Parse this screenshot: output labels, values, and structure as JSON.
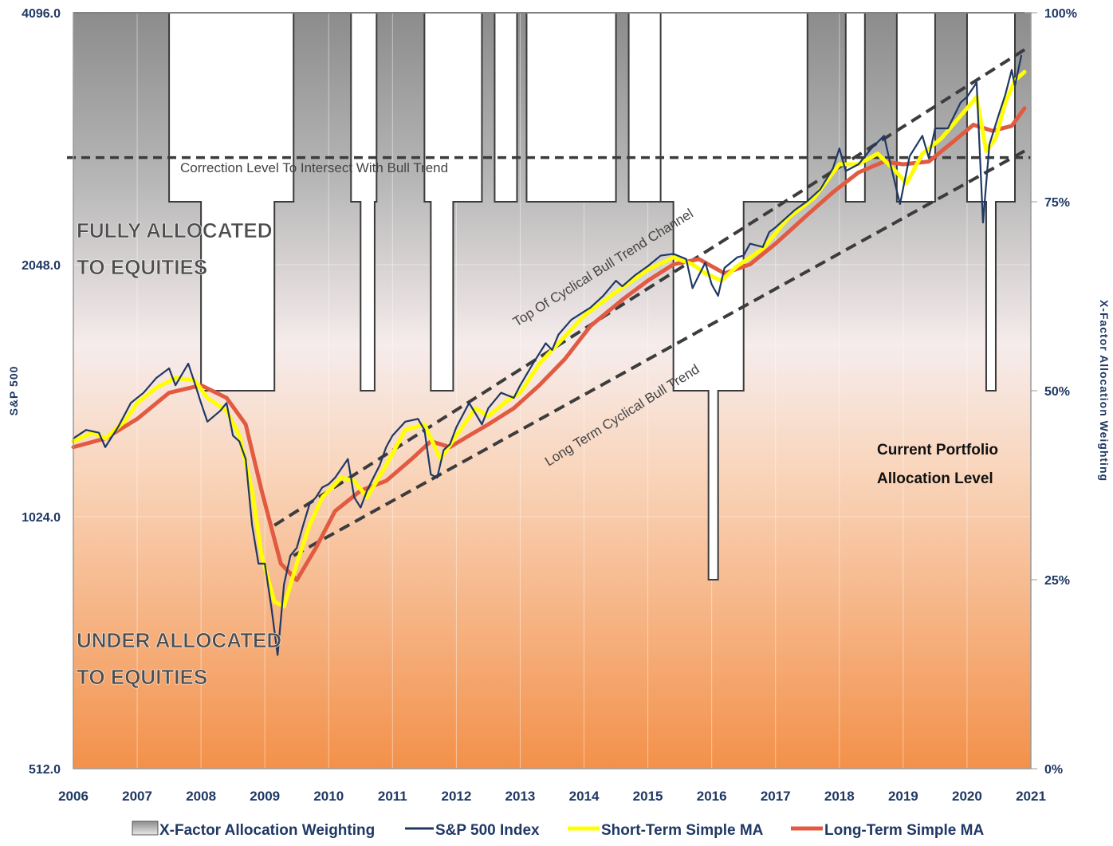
{
  "chart_data": {
    "type": "line",
    "x": [
      2006,
      2007,
      2008,
      2009,
      2010,
      2011,
      2012,
      2013,
      2014,
      2015,
      2016,
      2017,
      2018,
      2019,
      2020,
      2021
    ],
    "xlim": [
      2006,
      2021
    ],
    "left_axis": {
      "label": "S&P 500",
      "scale": "log",
      "ylim": [
        512,
        4096
      ],
      "ticks": [
        "512.0",
        "1024.0",
        "2048.0",
        "4096.0"
      ]
    },
    "right_axis": {
      "label": "X-Factor Allocation Weighting",
      "ylim": [
        0,
        100
      ],
      "ticks": [
        "0%",
        "25%",
        "50%",
        "75%",
        "100%"
      ]
    },
    "series": [
      {
        "name": "X-Factor Allocation Weighting",
        "kind": "step-area",
        "color": "#808080",
        "points": [
          [
            2006.0,
            100
          ],
          [
            2007.5,
            100
          ],
          [
            2007.5,
            75
          ],
          [
            2008.0,
            75
          ],
          [
            2008.0,
            50
          ],
          [
            2009.15,
            50
          ],
          [
            2009.15,
            75
          ],
          [
            2009.45,
            75
          ],
          [
            2009.45,
            100
          ],
          [
            2010.35,
            100
          ],
          [
            2010.35,
            75
          ],
          [
            2010.5,
            75
          ],
          [
            2010.5,
            50
          ],
          [
            2010.72,
            50
          ],
          [
            2010.72,
            75
          ],
          [
            2010.75,
            75
          ],
          [
            2010.75,
            100
          ],
          [
            2011.5,
            100
          ],
          [
            2011.5,
            75
          ],
          [
            2011.6,
            75
          ],
          [
            2011.6,
            50
          ],
          [
            2011.95,
            50
          ],
          [
            2011.95,
            75
          ],
          [
            2012.4,
            75
          ],
          [
            2012.4,
            100
          ],
          [
            2012.6,
            100
          ],
          [
            2012.6,
            75
          ],
          [
            2012.95,
            75
          ],
          [
            2012.95,
            100
          ],
          [
            2013.1,
            100
          ],
          [
            2013.1,
            75
          ],
          [
            2014.5,
            75
          ],
          [
            2014.5,
            100
          ],
          [
            2014.7,
            100
          ],
          [
            2014.7,
            75
          ],
          [
            2015.2,
            75
          ],
          [
            2015.2,
            100
          ],
          [
            2015.2,
            75
          ],
          [
            2015.4,
            75
          ],
          [
            2015.4,
            50
          ],
          [
            2015.95,
            50
          ],
          [
            2015.95,
            25
          ],
          [
            2016.1,
            25
          ],
          [
            2016.1,
            50
          ],
          [
            2016.5,
            50
          ],
          [
            2016.5,
            75
          ],
          [
            2017.5,
            75
          ],
          [
            2017.5,
            100
          ],
          [
            2018.1,
            100
          ],
          [
            2018.1,
            75
          ],
          [
            2018.4,
            75
          ],
          [
            2018.4,
            100
          ],
          [
            2018.9,
            100
          ],
          [
            2018.9,
            75
          ],
          [
            2019.5,
            75
          ],
          [
            2019.5,
            100
          ],
          [
            2020.0,
            100
          ],
          [
            2020.0,
            75
          ],
          [
            2020.3,
            75
          ],
          [
            2020.3,
            50
          ],
          [
            2020.45,
            50
          ],
          [
            2020.45,
            75
          ],
          [
            2020.75,
            75
          ],
          [
            2020.75,
            100
          ],
          [
            2020.9,
            100
          ]
        ]
      },
      {
        "name": "S&P 500 Index",
        "color": "#1f3864",
        "points": [
          [
            2006.0,
            1270
          ],
          [
            2006.2,
            1300
          ],
          [
            2006.4,
            1290
          ],
          [
            2006.5,
            1240
          ],
          [
            2006.7,
            1310
          ],
          [
            2006.9,
            1400
          ],
          [
            2007.1,
            1440
          ],
          [
            2007.3,
            1500
          ],
          [
            2007.5,
            1540
          ],
          [
            2007.6,
            1470
          ],
          [
            2007.8,
            1560
          ],
          [
            2007.9,
            1480
          ],
          [
            2008.0,
            1400
          ],
          [
            2008.1,
            1330
          ],
          [
            2008.3,
            1370
          ],
          [
            2008.4,
            1400
          ],
          [
            2008.5,
            1280
          ],
          [
            2008.6,
            1260
          ],
          [
            2008.7,
            1200
          ],
          [
            2008.8,
            1000
          ],
          [
            2008.9,
            900
          ],
          [
            2009.0,
            900
          ],
          [
            2009.1,
            800
          ],
          [
            2009.2,
            700
          ],
          [
            2009.3,
            850
          ],
          [
            2009.4,
            920
          ],
          [
            2009.5,
            940
          ],
          [
            2009.6,
            1000
          ],
          [
            2009.7,
            1060
          ],
          [
            2009.8,
            1080
          ],
          [
            2009.9,
            1110
          ],
          [
            2010.0,
            1120
          ],
          [
            2010.1,
            1140
          ],
          [
            2010.3,
            1200
          ],
          [
            2010.4,
            1080
          ],
          [
            2010.5,
            1050
          ],
          [
            2010.6,
            1100
          ],
          [
            2010.7,
            1140
          ],
          [
            2010.8,
            1180
          ],
          [
            2010.9,
            1240
          ],
          [
            2011.0,
            1280
          ],
          [
            2011.2,
            1330
          ],
          [
            2011.4,
            1340
          ],
          [
            2011.5,
            1300
          ],
          [
            2011.6,
            1150
          ],
          [
            2011.7,
            1140
          ],
          [
            2011.8,
            1230
          ],
          [
            2011.9,
            1250
          ],
          [
            2012.0,
            1310
          ],
          [
            2012.2,
            1400
          ],
          [
            2012.3,
            1360
          ],
          [
            2012.4,
            1320
          ],
          [
            2012.5,
            1380
          ],
          [
            2012.7,
            1440
          ],
          [
            2012.9,
            1420
          ],
          [
            2013.0,
            1470
          ],
          [
            2013.2,
            1560
          ],
          [
            2013.4,
            1650
          ],
          [
            2013.5,
            1620
          ],
          [
            2013.6,
            1690
          ],
          [
            2013.8,
            1760
          ],
          [
            2014.0,
            1800
          ],
          [
            2014.1,
            1820
          ],
          [
            2014.3,
            1880
          ],
          [
            2014.5,
            1960
          ],
          [
            2014.6,
            1930
          ],
          [
            2014.8,
            1990
          ],
          [
            2015.0,
            2040
          ],
          [
            2015.2,
            2100
          ],
          [
            2015.4,
            2110
          ],
          [
            2015.6,
            2080
          ],
          [
            2015.7,
            1920
          ],
          [
            2015.8,
            1990
          ],
          [
            2015.9,
            2060
          ],
          [
            2016.0,
            1940
          ],
          [
            2016.1,
            1880
          ],
          [
            2016.2,
            2030
          ],
          [
            2016.4,
            2090
          ],
          [
            2016.5,
            2100
          ],
          [
            2016.6,
            2170
          ],
          [
            2016.8,
            2150
          ],
          [
            2016.9,
            2240
          ],
          [
            2017.0,
            2270
          ],
          [
            2017.3,
            2380
          ],
          [
            2017.5,
            2440
          ],
          [
            2017.7,
            2520
          ],
          [
            2017.9,
            2670
          ],
          [
            2018.0,
            2820
          ],
          [
            2018.1,
            2650
          ],
          [
            2018.3,
            2700
          ],
          [
            2018.5,
            2820
          ],
          [
            2018.7,
            2920
          ],
          [
            2018.8,
            2700
          ],
          [
            2018.95,
            2420
          ],
          [
            2019.1,
            2760
          ],
          [
            2019.3,
            2920
          ],
          [
            2019.4,
            2750
          ],
          [
            2019.5,
            2980
          ],
          [
            2019.7,
            2980
          ],
          [
            2019.9,
            3200
          ],
          [
            2020.0,
            3250
          ],
          [
            2020.15,
            3380
          ],
          [
            2020.25,
            2300
          ],
          [
            2020.35,
            2850
          ],
          [
            2020.5,
            3100
          ],
          [
            2020.6,
            3270
          ],
          [
            2020.7,
            3500
          ],
          [
            2020.75,
            3350
          ],
          [
            2020.85,
            3640
          ]
        ]
      },
      {
        "name": "Short-Term Simple MA",
        "color": "#ffff00",
        "points": [
          [
            2006.0,
            1260
          ],
          [
            2006.3,
            1290
          ],
          [
            2006.5,
            1270
          ],
          [
            2006.8,
            1330
          ],
          [
            2007.0,
            1400
          ],
          [
            2007.3,
            1460
          ],
          [
            2007.6,
            1500
          ],
          [
            2007.9,
            1490
          ],
          [
            2008.1,
            1420
          ],
          [
            2008.4,
            1370
          ],
          [
            2008.6,
            1280
          ],
          [
            2008.8,
            1100
          ],
          [
            2008.95,
            920
          ],
          [
            2009.15,
            810
          ],
          [
            2009.3,
            800
          ],
          [
            2009.5,
            900
          ],
          [
            2009.7,
            1000
          ],
          [
            2009.9,
            1080
          ],
          [
            2010.2,
            1140
          ],
          [
            2010.4,
            1130
          ],
          [
            2010.6,
            1080
          ],
          [
            2010.9,
            1180
          ],
          [
            2011.2,
            1300
          ],
          [
            2011.5,
            1320
          ],
          [
            2011.75,
            1200
          ],
          [
            2012.0,
            1280
          ],
          [
            2012.3,
            1380
          ],
          [
            2012.5,
            1350
          ],
          [
            2012.8,
            1410
          ],
          [
            2013.0,
            1440
          ],
          [
            2013.3,
            1560
          ],
          [
            2013.6,
            1650
          ],
          [
            2014.0,
            1780
          ],
          [
            2014.5,
            1900
          ],
          [
            2015.0,
            2020
          ],
          [
            2015.4,
            2090
          ],
          [
            2015.7,
            2050
          ],
          [
            2015.9,
            2000
          ],
          [
            2016.15,
            1960
          ],
          [
            2016.4,
            2040
          ],
          [
            2016.8,
            2140
          ],
          [
            2017.2,
            2330
          ],
          [
            2017.6,
            2460
          ],
          [
            2018.0,
            2700
          ],
          [
            2018.3,
            2700
          ],
          [
            2018.6,
            2780
          ],
          [
            2018.9,
            2640
          ],
          [
            2019.05,
            2560
          ],
          [
            2019.3,
            2780
          ],
          [
            2019.6,
            2900
          ],
          [
            2020.0,
            3150
          ],
          [
            2020.15,
            3250
          ],
          [
            2020.3,
            2800
          ],
          [
            2020.45,
            2900
          ],
          [
            2020.6,
            3200
          ],
          [
            2020.75,
            3400
          ],
          [
            2020.9,
            3480
          ]
        ]
      },
      {
        "name": "Long-Term Simple MA",
        "color": "#e15a41",
        "points": [
          [
            2006.0,
            1240
          ],
          [
            2006.5,
            1270
          ],
          [
            2007.0,
            1340
          ],
          [
            2007.5,
            1440
          ],
          [
            2008.0,
            1470
          ],
          [
            2008.4,
            1420
          ],
          [
            2008.7,
            1320
          ],
          [
            2008.95,
            1100
          ],
          [
            2009.25,
            900
          ],
          [
            2009.5,
            860
          ],
          [
            2009.8,
            940
          ],
          [
            2010.1,
            1040
          ],
          [
            2010.5,
            1100
          ],
          [
            2010.9,
            1130
          ],
          [
            2011.3,
            1200
          ],
          [
            2011.6,
            1260
          ],
          [
            2011.9,
            1240
          ],
          [
            2012.2,
            1280
          ],
          [
            2012.5,
            1320
          ],
          [
            2012.9,
            1380
          ],
          [
            2013.3,
            1470
          ],
          [
            2013.7,
            1580
          ],
          [
            2014.1,
            1730
          ],
          [
            2014.6,
            1860
          ],
          [
            2015.0,
            1960
          ],
          [
            2015.4,
            2050
          ],
          [
            2015.8,
            2080
          ],
          [
            2016.2,
            2000
          ],
          [
            2016.6,
            2050
          ],
          [
            2017.0,
            2170
          ],
          [
            2017.5,
            2350
          ],
          [
            2017.9,
            2500
          ],
          [
            2018.3,
            2640
          ],
          [
            2018.7,
            2720
          ],
          [
            2019.0,
            2700
          ],
          [
            2019.4,
            2720
          ],
          [
            2019.8,
            2880
          ],
          [
            2020.1,
            3010
          ],
          [
            2020.4,
            2960
          ],
          [
            2020.7,
            3000
          ],
          [
            2020.9,
            3150
          ]
        ]
      }
    ],
    "reference_lines": [
      {
        "label": "Correction Level To Intersect With Bull Trend",
        "value": 2750
      },
      {
        "label": "Top Of Cyclical Bull Trend Channel",
        "from": [
          2009.15,
          1000
        ],
        "to": [
          2020.9,
          3700
        ]
      },
      {
        "label": "Long Term Cyclical Bull Trend",
        "from": [
          2009.45,
          920
        ],
        "to": [
          2020.9,
          2800
        ]
      }
    ],
    "legend": {
      "position": "bottom",
      "entries": [
        "X-Factor Allocation Weighting",
        "S&P 500 Index",
        "Short-Term Simple MA",
        "Long-Term Simple MA"
      ]
    }
  },
  "annotations": {
    "fully_line1": "FULLY ALLOCATED",
    "fully_line2": "TO EQUITIES",
    "under_line1": "UNDER ALLOCATED",
    "under_line2": "TO EQUITIES",
    "correction": "Correction Level To Intersect With Bull Trend",
    "top_channel": "Top Of Cyclical Bull Trend Channel",
    "long_term": "Long Term Cyclical Bull Trend",
    "current1": "Current Portfolio",
    "current2": "Allocation Level"
  }
}
